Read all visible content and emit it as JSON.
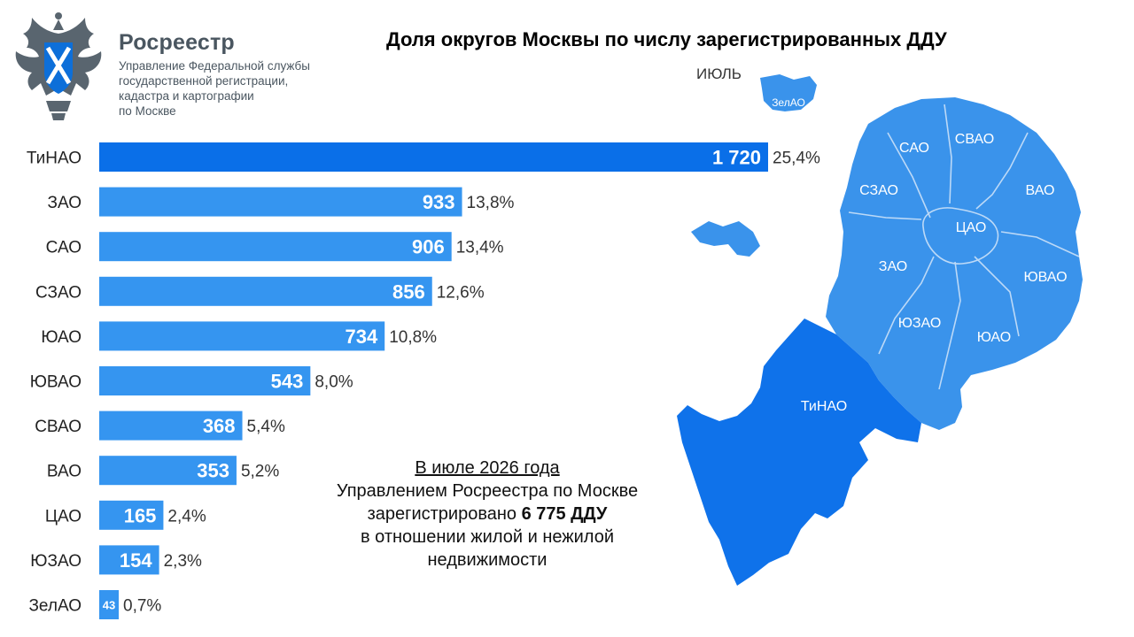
{
  "header": {
    "brand": "Росреестр",
    "subtitle_lines": [
      "Управление Федеральной службы",
      "государственной регистрации,",
      "кадастра и картографии",
      "по Москве"
    ]
  },
  "chart_data": {
    "type": "bar",
    "orientation": "horizontal",
    "title": "Доля округов Москвы по числу зарегистрированных ДДУ",
    "subtitle": "ИЮЛЬ",
    "categories": [
      "ТиНАО",
      "ЗАО",
      "САО",
      "СЗАО",
      "ЮАО",
      "ЮВАО",
      "СВАО",
      "ВАО",
      "ЦАО",
      "ЮЗАО",
      "ЗелАО"
    ],
    "values": [
      1720,
      933,
      906,
      856,
      734,
      543,
      368,
      353,
      165,
      154,
      43
    ],
    "value_labels": [
      "1 720",
      "933",
      "906",
      "856",
      "734",
      "543",
      "368",
      "353",
      "165",
      "154",
      "43"
    ],
    "percent_labels": [
      "25,4%",
      "13,8%",
      "13,4%",
      "12,6%",
      "10,8%",
      "8,0%",
      "5,4%",
      "5,2%",
      "2,4%",
      "2,3%",
      "0,7%"
    ],
    "xlim": [
      0,
      1720
    ],
    "grid": false,
    "legend": "none",
    "colors": {
      "highlight": "#0a6fe8",
      "bar": "#3595f0",
      "label_on_bar": "#ffffff"
    }
  },
  "map": {
    "labels": [
      "ЗелАО",
      "САО",
      "СВАО",
      "СЗАО",
      "ВАО",
      "ЦАО",
      "ЗАО",
      "ЮВАО",
      "ЮЗАО",
      "ЮАО",
      "ТиНАО"
    ],
    "colors": {
      "city": "#3a93eb",
      "tinao": "#0f72ea",
      "border": "#bcd9f7"
    }
  },
  "summary": {
    "line1": "В июле 2026 года",
    "line2": "Управлением Росреестра по Москве",
    "line3_prefix": "зарегистрировано ",
    "line3_bold": "6 775 ДДУ",
    "line4": "в отношении жилой и нежилой",
    "line5": "недвижимости"
  },
  "icons": {
    "emblem": "double-headed-eagle-emblem"
  }
}
